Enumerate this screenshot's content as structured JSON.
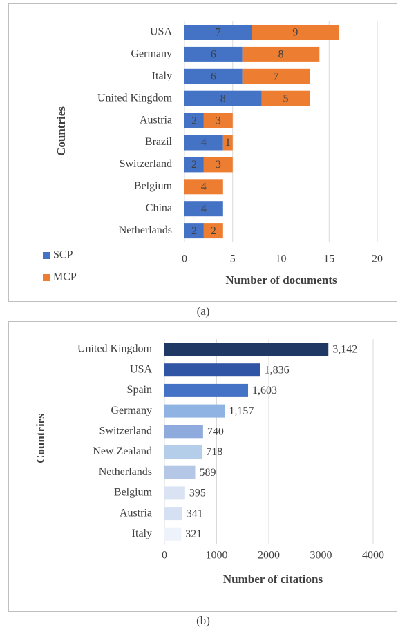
{
  "chart_data": [
    {
      "type": "stacked-bar",
      "caption": "(a)",
      "y_label": "Countries",
      "x_label": "Number of documents",
      "categories": [
        "USA",
        "Germany",
        "Italy",
        "United Kingdom",
        "Austria",
        "Brazil",
        "Switzerland",
        "Belgium",
        "China",
        "Netherlands"
      ],
      "series": [
        {
          "name": "SCP",
          "color": "#4472c4",
          "values": [
            7,
            6,
            6,
            8,
            2,
            4,
            2,
            0,
            4,
            2
          ]
        },
        {
          "name": "MCP",
          "color": "#ed7d31",
          "values": [
            9,
            8,
            7,
            5,
            3,
            1,
            3,
            4,
            0,
            2
          ]
        }
      ],
      "xlim": [
        0,
        20
      ],
      "xticks": [
        0,
        5,
        10,
        15,
        20
      ],
      "grid": true,
      "legend": "bottom-left"
    },
    {
      "type": "bar",
      "caption": "(b)",
      "y_label": "Countries",
      "x_label": "Number of citations",
      "categories": [
        "United Kingdom",
        "USA",
        "Spain",
        "Germany",
        "Switzerland",
        "New Zealand",
        "Netherlands",
        "Belgium",
        "Austria",
        "Italy"
      ],
      "values": [
        3142,
        1836,
        1603,
        1157,
        740,
        718,
        589,
        395,
        341,
        321
      ],
      "value_labels": [
        "3,142",
        "1,836",
        "1,603",
        "1,157",
        "740",
        "718",
        "589",
        "395",
        "341",
        "321"
      ],
      "colors": [
        "#203864",
        "#2f55a4",
        "#4472c4",
        "#8fb4e3",
        "#8faadc",
        "#b4cde9",
        "#b4c7e7",
        "#dae3f3",
        "#d6e0f3",
        "#eef3fb"
      ],
      "xlim": [
        0,
        4000
      ],
      "xticks": [
        0,
        1000,
        2000,
        3000,
        4000
      ],
      "grid": true
    }
  ]
}
